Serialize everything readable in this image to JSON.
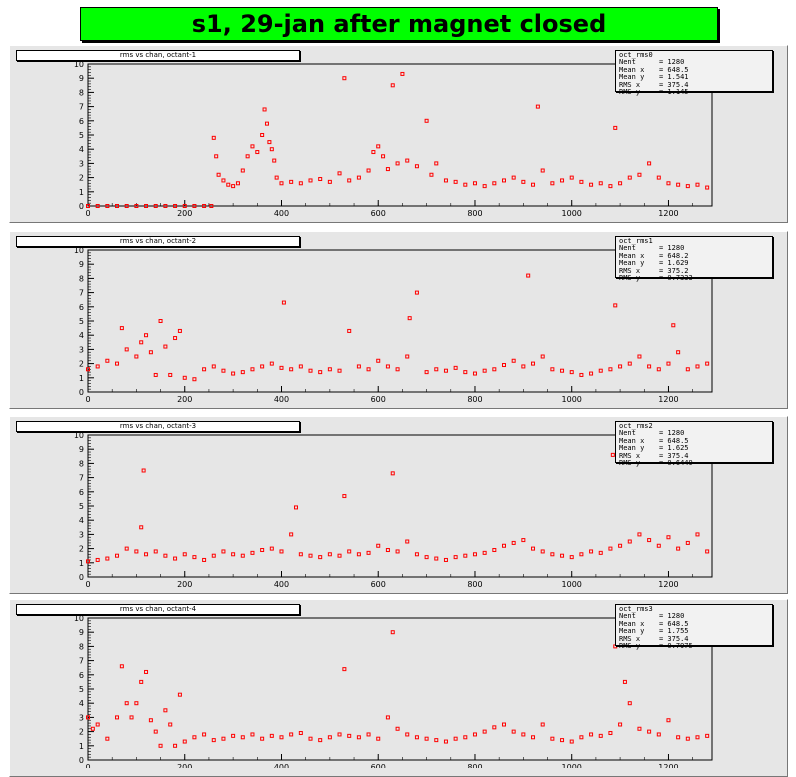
{
  "title": "s1, 29-jan after magnet closed",
  "colors": {
    "title_bg": "#00ff00",
    "frame_bg": "#e6e6e6",
    "marker": "#ff0000"
  },
  "chart_data": [
    {
      "type": "scatter",
      "title": "rms vs chan, octant-1",
      "xlim": [
        0,
        1290
      ],
      "ylim": [
        0,
        10
      ],
      "xticks": [
        0,
        200,
        400,
        600,
        800,
        1000,
        1200
      ],
      "yticks": [
        0,
        1,
        2,
        3,
        4,
        5,
        6,
        7,
        8,
        9,
        10
      ],
      "stats": {
        "name": "oct_rms0",
        "entries": [
          [
            "Nent",
            "1280"
          ],
          [
            "Mean x",
            "648.5"
          ],
          [
            "Mean y",
            "1.541"
          ],
          [
            "RMS x",
            "375.4"
          ],
          [
            "RMS y",
            "1.145"
          ]
        ]
      },
      "series": [
        {
          "x": [
            0,
            20,
            40,
            60,
            80,
            100,
            120,
            140,
            160,
            180,
            200,
            220,
            240,
            255,
            260,
            265,
            270,
            280,
            290,
            300,
            310,
            320,
            330,
            340,
            350,
            360,
            365,
            370,
            375,
            380,
            385,
            390,
            400,
            420,
            440,
            460,
            480,
            500,
            520,
            530,
            540,
            560,
            580,
            590,
            600,
            610,
            620,
            630,
            640,
            650,
            660,
            680,
            700,
            710,
            720,
            740,
            760,
            780,
            800,
            820,
            840,
            860,
            880,
            900,
            920,
            930,
            940,
            960,
            980,
            1000,
            1020,
            1040,
            1060,
            1080,
            1090,
            1100,
            1120,
            1140,
            1160,
            1180,
            1200,
            1220,
            1240,
            1260,
            1280
          ],
          "y": [
            0,
            0,
            0,
            0,
            0,
            0,
            0,
            0,
            0,
            0,
            0,
            0,
            0,
            0,
            4.8,
            3.5,
            2.2,
            1.8,
            1.5,
            1.4,
            1.6,
            2.5,
            3.5,
            4.2,
            3.8,
            5.0,
            6.8,
            5.8,
            4.5,
            4.0,
            3.2,
            2.0,
            1.6,
            1.7,
            1.6,
            1.8,
            1.9,
            1.7,
            2.3,
            9.0,
            1.8,
            2.0,
            2.5,
            3.8,
            4.2,
            3.5,
            2.6,
            8.5,
            3.0,
            9.3,
            3.2,
            2.8,
            6.0,
            2.2,
            3.0,
            1.8,
            1.7,
            1.5,
            1.6,
            1.4,
            1.6,
            1.8,
            2.0,
            1.7,
            1.5,
            7.0,
            2.5,
            1.6,
            1.8,
            2.0,
            1.7,
            1.5,
            1.6,
            1.4,
            5.5,
            1.6,
            2.0,
            2.2,
            3.0,
            2.0,
            1.6,
            1.5,
            1.4,
            1.5,
            1.3
          ]
        }
      ]
    },
    {
      "type": "scatter",
      "title": "rms vs chan, octant-2",
      "xlim": [
        0,
        1290
      ],
      "ylim": [
        0,
        10
      ],
      "xticks": [
        0,
        200,
        400,
        600,
        800,
        1000,
        1200
      ],
      "yticks": [
        0,
        1,
        2,
        3,
        4,
        5,
        6,
        7,
        8,
        9,
        10
      ],
      "stats": {
        "name": "oct_rms1",
        "entries": [
          [
            "Nent",
            "1280"
          ],
          [
            "Mean x",
            "648.2"
          ],
          [
            "Mean y",
            "1.629"
          ],
          [
            "RMS x",
            "375.2"
          ],
          [
            "RMS y",
            "0.7333"
          ]
        ]
      },
      "series": [
        {
          "x": [
            0,
            20,
            40,
            60,
            70,
            80,
            100,
            110,
            120,
            130,
            140,
            150,
            160,
            170,
            180,
            190,
            200,
            220,
            240,
            260,
            280,
            300,
            320,
            340,
            360,
            380,
            400,
            405,
            420,
            440,
            460,
            480,
            500,
            520,
            540,
            560,
            580,
            600,
            620,
            640,
            660,
            665,
            680,
            700,
            720,
            740,
            760,
            780,
            800,
            820,
            840,
            860,
            880,
            900,
            910,
            920,
            940,
            960,
            980,
            1000,
            1020,
            1040,
            1060,
            1080,
            1090,
            1100,
            1120,
            1140,
            1160,
            1180,
            1200,
            1210,
            1220,
            1240,
            1260,
            1280
          ],
          "y": [
            1.6,
            1.8,
            2.2,
            2.0,
            4.5,
            3.0,
            2.5,
            3.5,
            4.0,
            2.8,
            1.2,
            5.0,
            3.2,
            1.2,
            3.8,
            4.3,
            1.0,
            0.9,
            1.6,
            1.8,
            1.5,
            1.3,
            1.4,
            1.6,
            1.8,
            2.0,
            1.7,
            6.3,
            1.6,
            1.8,
            1.5,
            1.4,
            1.6,
            1.5,
            4.3,
            1.8,
            1.6,
            2.2,
            1.8,
            1.6,
            2.5,
            5.2,
            7.0,
            1.4,
            1.6,
            1.5,
            1.7,
            1.4,
            1.3,
            1.5,
            1.6,
            1.9,
            2.2,
            1.8,
            8.2,
            2.0,
            2.5,
            1.6,
            1.5,
            1.4,
            1.2,
            1.3,
            1.5,
            1.6,
            6.1,
            1.8,
            2.0,
            2.5,
            1.8,
            1.6,
            2.0,
            4.7,
            2.8,
            1.6,
            1.8,
            2.0
          ]
        }
      ]
    },
    {
      "type": "scatter",
      "title": "rms vs chan, octant-3",
      "xlim": [
        0,
        1290
      ],
      "ylim": [
        0,
        10
      ],
      "xticks": [
        0,
        200,
        400,
        600,
        800,
        1000,
        1200
      ],
      "yticks": [
        0,
        1,
        2,
        3,
        4,
        5,
        6,
        7,
        8,
        9,
        10
      ],
      "stats": {
        "name": "oct_rms2",
        "entries": [
          [
            "Nent",
            "1280"
          ],
          [
            "Mean x",
            "648.5"
          ],
          [
            "Mean y",
            "1.625"
          ],
          [
            "RMS x",
            "375.4"
          ],
          [
            "RMS y",
            "0.6449"
          ]
        ]
      },
      "series": [
        {
          "x": [
            0,
            20,
            40,
            60,
            80,
            100,
            110,
            115,
            120,
            140,
            160,
            180,
            200,
            220,
            240,
            260,
            280,
            300,
            320,
            340,
            360,
            380,
            400,
            420,
            430,
            440,
            460,
            480,
            500,
            520,
            530,
            540,
            560,
            580,
            600,
            620,
            630,
            640,
            660,
            680,
            700,
            720,
            740,
            760,
            780,
            800,
            820,
            840,
            860,
            880,
            900,
            920,
            940,
            960,
            980,
            1000,
            1020,
            1040,
            1060,
            1080,
            1085,
            1100,
            1120,
            1140,
            1160,
            1180,
            1200,
            1220,
            1240,
            1260,
            1280
          ],
          "y": [
            1.1,
            1.2,
            1.3,
            1.5,
            2.0,
            1.8,
            3.5,
            7.5,
            1.6,
            1.8,
            1.5,
            1.3,
            1.6,
            1.4,
            1.2,
            1.5,
            1.8,
            1.6,
            1.5,
            1.7,
            1.9,
            2.0,
            1.8,
            3.0,
            4.9,
            1.6,
            1.5,
            1.4,
            1.6,
            1.5,
            5.7,
            1.8,
            1.6,
            1.7,
            2.2,
            1.9,
            7.3,
            1.8,
            2.5,
            1.6,
            1.4,
            1.3,
            1.2,
            1.4,
            1.5,
            1.6,
            1.7,
            1.9,
            2.2,
            2.4,
            2.6,
            2.0,
            1.8,
            1.6,
            1.5,
            1.4,
            1.6,
            1.8,
            1.7,
            2.0,
            8.6,
            2.2,
            2.5,
            3.0,
            2.6,
            2.2,
            2.8,
            2.0,
            2.4,
            3.0,
            1.8
          ]
        }
      ]
    },
    {
      "type": "scatter",
      "title": "rms vs chan, octant-4",
      "xlim": [
        0,
        1290
      ],
      "ylim": [
        0,
        10
      ],
      "xticks": [
        0,
        200,
        400,
        600,
        800,
        1000,
        1200
      ],
      "yticks": [
        0,
        1,
        2,
        3,
        4,
        5,
        6,
        7,
        8,
        9,
        10
      ],
      "stats": {
        "name": "oct_rms3",
        "entries": [
          [
            "Nent",
            "1280"
          ],
          [
            "Mean x",
            "648.5"
          ],
          [
            "Mean y",
            "1.755"
          ],
          [
            "RMS x",
            "375.4"
          ],
          [
            "RMS y",
            "0.7975"
          ]
        ]
      },
      "series": [
        {
          "x": [
            0,
            10,
            20,
            40,
            60,
            70,
            80,
            90,
            100,
            110,
            120,
            130,
            140,
            150,
            160,
            170,
            180,
            190,
            200,
            220,
            240,
            260,
            280,
            300,
            320,
            340,
            360,
            380,
            400,
            420,
            440,
            460,
            480,
            500,
            520,
            530,
            540,
            560,
            580,
            600,
            620,
            630,
            640,
            660,
            680,
            700,
            720,
            740,
            760,
            780,
            800,
            820,
            840,
            860,
            880,
            900,
            920,
            940,
            960,
            980,
            1000,
            1020,
            1040,
            1060,
            1080,
            1090,
            1100,
            1110,
            1120,
            1140,
            1160,
            1180,
            1200,
            1220,
            1240,
            1260,
            1280
          ],
          "y": [
            3.0,
            2.2,
            2.5,
            1.5,
            3.0,
            6.6,
            4.0,
            3.0,
            4.0,
            5.5,
            6.2,
            2.8,
            2.0,
            1.0,
            3.5,
            2.5,
            1.0,
            4.6,
            1.3,
            1.6,
            1.8,
            1.4,
            1.5,
            1.7,
            1.6,
            1.8,
            1.5,
            1.7,
            1.6,
            1.8,
            1.9,
            1.5,
            1.4,
            1.6,
            1.8,
            6.4,
            1.7,
            1.6,
            1.8,
            1.5,
            3.0,
            9.0,
            2.2,
            1.8,
            1.6,
            1.5,
            1.4,
            1.3,
            1.5,
            1.6,
            1.8,
            2.0,
            2.3,
            2.5,
            2.0,
            1.8,
            1.6,
            2.5,
            1.5,
            1.4,
            1.3,
            1.6,
            1.8,
            1.7,
            1.9,
            8.0,
            2.5,
            5.5,
            4.0,
            2.2,
            2.0,
            1.8,
            2.8,
            1.6,
            1.5,
            1.6,
            1.7
          ]
        }
      ]
    }
  ]
}
